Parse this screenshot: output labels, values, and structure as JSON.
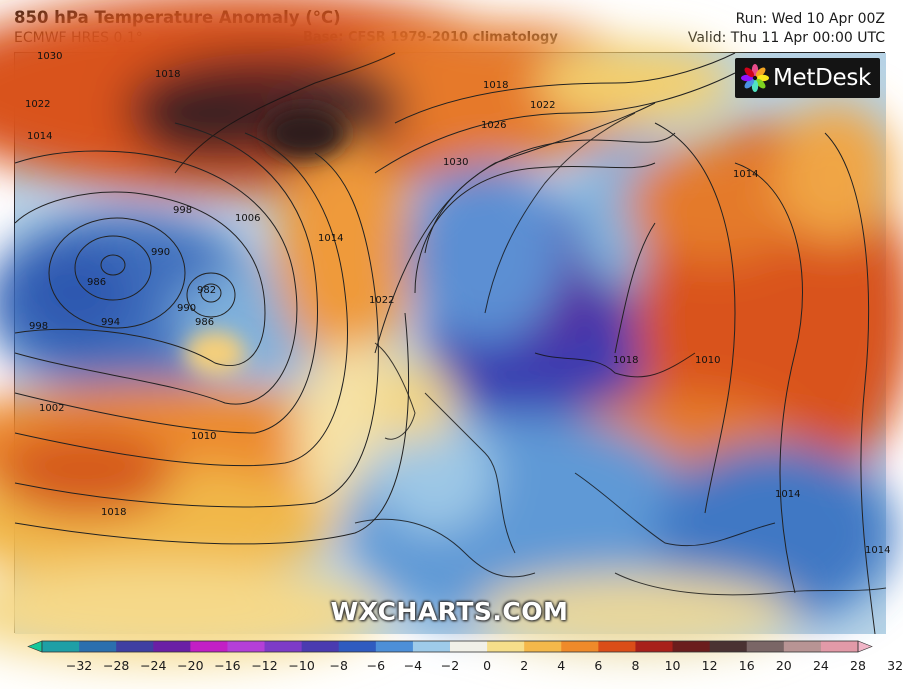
{
  "header": {
    "title": "850 hPa Temperature Anomaly (°C)",
    "subtitle": "ECMWF HRES 0.1°",
    "base": "Base: CFSR 1979-2010 climatology",
    "run": "Run: Wed 10 Apr 00Z",
    "valid": "Valid: Thu 11 Apr 00:00 UTC"
  },
  "logo": {
    "text": "MetDesk",
    "icon": "metdesk-flower-logo"
  },
  "watermark": "WXCHARTS.COM",
  "colorbar": {
    "ticks": [
      "−32",
      "−28",
      "−24",
      "−20",
      "−16",
      "−12",
      "−10",
      "−8",
      "−6",
      "−4",
      "−2",
      "0",
      "2",
      "4",
      "6",
      "8",
      "10",
      "12",
      "16",
      "20",
      "24",
      "28",
      "32"
    ],
    "colors": [
      "#16c79a",
      "#1e9fa6",
      "#2b6fae",
      "#3f3fa2",
      "#6a1fa5",
      "#c21fc5",
      "#b43fd8",
      "#7d3bc7",
      "#4a3bb0",
      "#2f5bc0",
      "#4d8fd8",
      "#9ecbea",
      "#f1f0e8",
      "#f6de8a",
      "#f4b84a",
      "#ef8a2a",
      "#db4d18",
      "#a8201a",
      "#6b1d1d",
      "#4a3232",
      "#7a6666",
      "#b89494",
      "#e29aa8",
      "#f0b5c7"
    ]
  },
  "isobars": {
    "labels": [
      "1030",
      "1018",
      "1022",
      "1014",
      "1018",
      "1022",
      "1026",
      "1030",
      "998",
      "1006",
      "1014",
      "990",
      "986",
      "982",
      "990",
      "986",
      "994",
      "998",
      "1022",
      "1002",
      "1010",
      "1018",
      "1014",
      "1010",
      "1018",
      "1014",
      "1014"
    ]
  }
}
